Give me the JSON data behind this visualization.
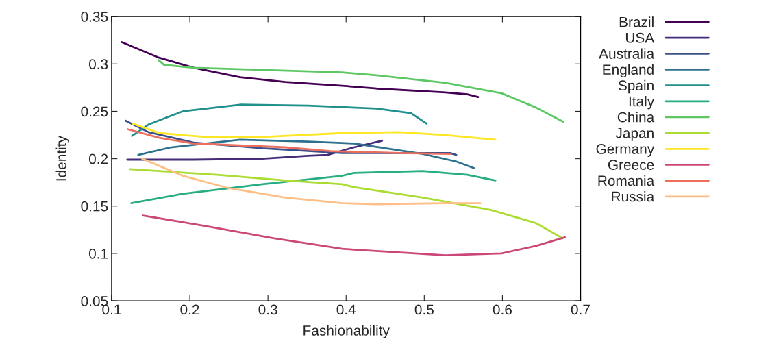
{
  "chart_data": {
    "type": "line",
    "xlabel": "Fashionability",
    "ylabel": "Identity",
    "xlim": [
      0.1,
      0.7
    ],
    "xticks": [
      0.1,
      0.2,
      0.3,
      0.4,
      0.5,
      0.6,
      0.7
    ],
    "ylim": [
      0.05,
      0.35
    ],
    "yticks": [
      0.05,
      0.1,
      0.15,
      0.2,
      0.25,
      0.3,
      0.35
    ],
    "grid": false,
    "legend": "right",
    "marker": "none",
    "line_style": "solid",
    "series": [
      {
        "name": "Brazil",
        "color": "#440154",
        "x": [
          0.113,
          0.159,
          0.205,
          0.264,
          0.322,
          0.395,
          0.439,
          0.527,
          0.555,
          0.569
        ],
        "values": [
          0.323,
          0.307,
          0.296,
          0.286,
          0.281,
          0.277,
          0.274,
          0.27,
          0.268,
          0.265
        ]
      },
      {
        "name": "USA",
        "color": "#472c7a",
        "x": [
          0.12,
          0.205,
          0.293,
          0.351,
          0.376,
          0.41,
          0.446
        ],
        "values": [
          0.199,
          0.199,
          0.2,
          0.203,
          0.204,
          0.212,
          0.219
        ]
      },
      {
        "name": "Australia",
        "color": "#3b518b",
        "x": [
          0.118,
          0.147,
          0.205,
          0.293,
          0.395,
          0.439,
          0.533,
          0.541
        ],
        "values": [
          0.24,
          0.228,
          0.217,
          0.211,
          0.206,
          0.206,
          0.206,
          0.204
        ]
      },
      {
        "name": "England",
        "color": "#2c718e",
        "x": [
          0.134,
          0.176,
          0.264,
          0.351,
          0.41,
          0.498,
          0.541,
          0.564
        ],
        "values": [
          0.204,
          0.212,
          0.22,
          0.218,
          0.216,
          0.205,
          0.197,
          0.19
        ]
      },
      {
        "name": "Spain",
        "color": "#21908d",
        "x": [
          0.126,
          0.147,
          0.191,
          0.264,
          0.351,
          0.439,
          0.483,
          0.503
        ],
        "values": [
          0.224,
          0.236,
          0.25,
          0.257,
          0.256,
          0.253,
          0.248,
          0.237
        ]
      },
      {
        "name": "Italy",
        "color": "#27ad81",
        "x": [
          0.125,
          0.132,
          0.191,
          0.293,
          0.395,
          0.41,
          0.498,
          0.555,
          0.591
        ],
        "values": [
          0.153,
          0.154,
          0.163,
          0.173,
          0.182,
          0.185,
          0.187,
          0.183,
          0.177
        ]
      },
      {
        "name": "China",
        "color": "#5cc863",
        "x": [
          0.16,
          0.167,
          0.205,
          0.395,
          0.439,
          0.527,
          0.599,
          0.643,
          0.678
        ],
        "values": [
          0.304,
          0.299,
          0.296,
          0.291,
          0.288,
          0.28,
          0.269,
          0.254,
          0.239
        ]
      },
      {
        "name": "Japan",
        "color": "#aadc32",
        "x": [
          0.123,
          0.235,
          0.322,
          0.395,
          0.41,
          0.498,
          0.585,
          0.643,
          0.677
        ],
        "values": [
          0.189,
          0.183,
          0.177,
          0.173,
          0.17,
          0.159,
          0.146,
          0.132,
          0.116
        ]
      },
      {
        "name": "Germany",
        "color": "#fde725",
        "x": [
          0.127,
          0.161,
          0.22,
          0.293,
          0.395,
          0.468,
          0.527,
          0.591
        ],
        "values": [
          0.237,
          0.227,
          0.223,
          0.223,
          0.227,
          0.228,
          0.225,
          0.22
        ]
      },
      {
        "name": "Greece",
        "color": "#cc4778",
        "x": [
          0.14,
          0.22,
          0.308,
          0.395,
          0.41,
          0.527,
          0.599,
          0.643,
          0.68
        ],
        "values": [
          0.14,
          0.129,
          0.116,
          0.105,
          0.104,
          0.098,
          0.1,
          0.108,
          0.117
        ]
      },
      {
        "name": "Romania",
        "color": "#ec6f5d",
        "x": [
          0.121,
          0.161,
          0.205,
          0.322,
          0.38,
          0.468,
          0.533
        ],
        "values": [
          0.231,
          0.222,
          0.216,
          0.212,
          0.208,
          0.206,
          0.205
        ]
      },
      {
        "name": "Russia",
        "color": "#fdbf85",
        "x": [
          0.139,
          0.191,
          0.249,
          0.322,
          0.395,
          0.439,
          0.527,
          0.572
        ],
        "values": [
          0.2,
          0.182,
          0.169,
          0.159,
          0.153,
          0.152,
          0.153,
          0.153
        ]
      }
    ]
  }
}
